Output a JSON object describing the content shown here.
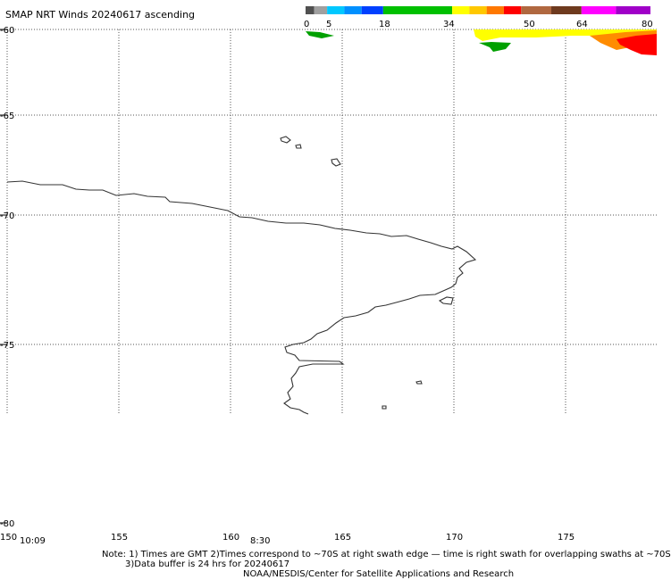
{
  "title": "SMAP NRT Winds 20240617 ascending",
  "colorbar": {
    "tick_labels": [
      "0",
      "5",
      "18",
      "34",
      "50",
      "64",
      "80"
    ],
    "segments": [
      {
        "from": 0,
        "to": 2,
        "color": "#505050"
      },
      {
        "from": 2,
        "to": 5,
        "color": "#a0a0a0"
      },
      {
        "from": 5,
        "to": 9,
        "color": "#00c8ff"
      },
      {
        "from": 9,
        "to": 13,
        "color": "#0090ff"
      },
      {
        "from": 13,
        "to": 18,
        "color": "#0040ff"
      },
      {
        "from": 18,
        "to": 34,
        "color": "#00c000"
      },
      {
        "from": 34,
        "to": 38,
        "color": "#ffff00"
      },
      {
        "from": 38,
        "to": 42,
        "color": "#ffc800"
      },
      {
        "from": 42,
        "to": 46,
        "color": "#ff7800"
      },
      {
        "from": 46,
        "to": 50,
        "color": "#ff0000"
      },
      {
        "from": 50,
        "to": 57,
        "color": "#b06840"
      },
      {
        "from": 57,
        "to": 64,
        "color": "#6e3a1e"
      },
      {
        "from": 64,
        "to": 72,
        "color": "#ff00ff"
      },
      {
        "from": 72,
        "to": 80,
        "color": "#a000c8"
      }
    ]
  },
  "lat_labels": [
    "-60",
    "-65",
    "-70",
    "-75",
    "-80"
  ],
  "lon_labels": [
    "150",
    "155",
    "160",
    "165",
    "170",
    "175"
  ],
  "time_labels": [
    "10:09",
    "8:30"
  ],
  "note": {
    "line1": "Note: 1) Times are GMT 2)Times correspond to ~70S at right swath edge — time is right swath for overlapping swaths at ~70S",
    "line2": "3)Data buffer is 24 hrs for 20240617",
    "line3": "NOAA/NESDIS/Center for Satellite Applications and Research"
  },
  "colors": {
    "grid": "#555555",
    "coast": "#333333",
    "wind_green": "#00a000",
    "wind_yellow": "#ffff00",
    "wind_orange": "#ff8c00",
    "wind_red": "#ff0000"
  }
}
